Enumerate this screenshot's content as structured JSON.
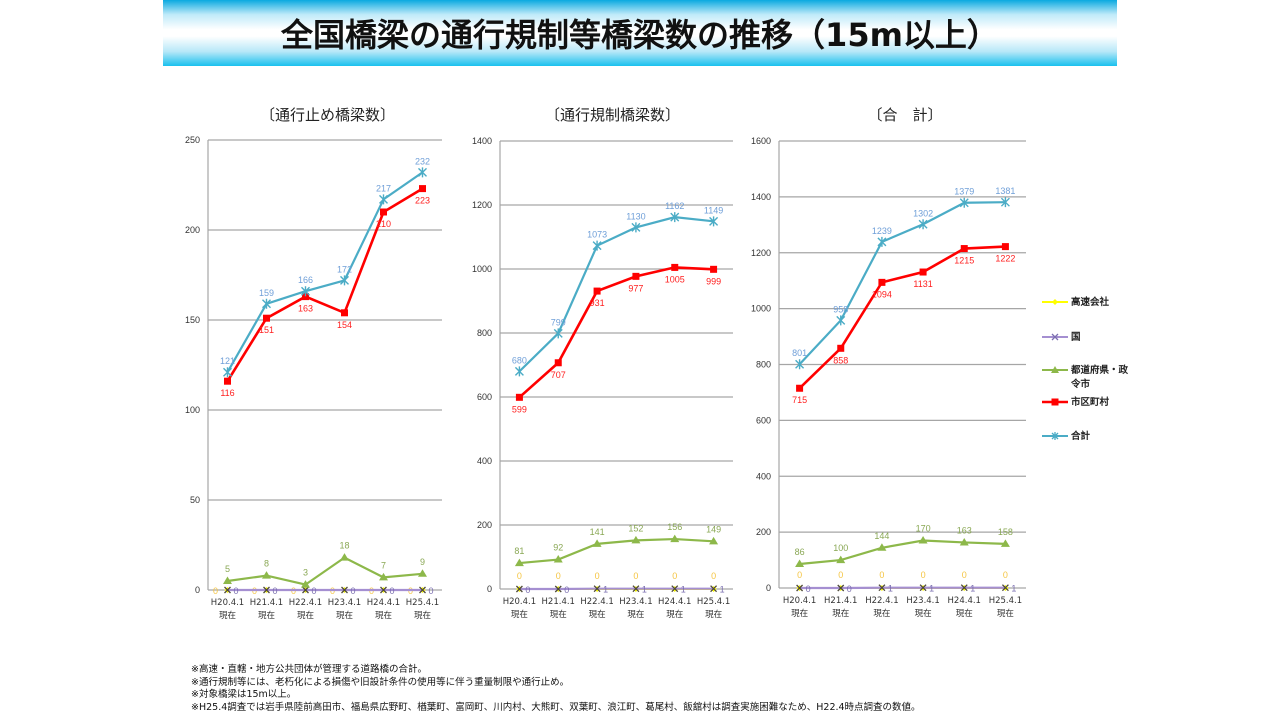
{
  "header": {
    "title": "全国橋梁の通行規制等橋梁数の推移（15m以上）"
  },
  "legend": [
    {
      "key": "expressway",
      "label": "高速会社",
      "color": "#ffff00",
      "marker": "diamond"
    },
    {
      "key": "national",
      "label": "国",
      "color": "#a58fd1",
      "marker": "x"
    },
    {
      "key": "prefecture",
      "label": "都道府県・政令市",
      "color": "#8db84a",
      "marker": "triangle"
    },
    {
      "key": "municipal",
      "label": "市区町村",
      "color": "#ff0000",
      "marker": "square"
    },
    {
      "key": "total",
      "label": "合計",
      "color": "#4bacc6",
      "marker": "star"
    }
  ],
  "label_colors": {
    "expressway": "#f5c542",
    "national": "#7b6fb0",
    "prefecture": "#8aa855",
    "municipal": "#ff2020",
    "total": "#6f9fd8"
  },
  "chart_data": [
    {
      "type": "line",
      "title": "〔通行止め橋梁数〕",
      "categories": [
        "H20.4.1\n現在",
        "H21.4.1\n現在",
        "H22.4.1\n現在",
        "H23.4.1\n現在",
        "H24.4.1\n現在",
        "H25.4.1\n現在"
      ],
      "ylim": [
        0,
        250
      ],
      "yticks": [
        0,
        50,
        100,
        150,
        200,
        250
      ],
      "grid": true,
      "series": [
        {
          "key": "expressway",
          "name": "高速会社",
          "values": [
            0,
            0,
            0,
            0,
            0,
            0
          ]
        },
        {
          "key": "national",
          "name": "国",
          "values": [
            0,
            0,
            0,
            0,
            0,
            0
          ]
        },
        {
          "key": "prefecture",
          "name": "都道府県・政令市",
          "values": [
            5,
            8,
            3,
            18,
            7,
            9
          ]
        },
        {
          "key": "municipal",
          "name": "市区町村",
          "values": [
            116,
            151,
            163,
            154,
            210,
            223
          ]
        },
        {
          "key": "total",
          "name": "合計",
          "values": [
            121,
            159,
            166,
            172,
            217,
            232
          ]
        }
      ]
    },
    {
      "type": "line",
      "title": "〔通行規制橋梁数〕",
      "categories": [
        "H20.4.1\n現在",
        "H21.4.1\n現在",
        "H22.4.1\n現在",
        "H23.4.1\n現在",
        "H24.4.1\n現在",
        "H25.4.1\n現在"
      ],
      "ylim": [
        0,
        1400
      ],
      "yticks": [
        0,
        200,
        400,
        600,
        800,
        1000,
        1200,
        1400
      ],
      "grid": true,
      "series": [
        {
          "key": "expressway",
          "name": "高速会社",
          "values": [
            0,
            0,
            0,
            0,
            0,
            0
          ]
        },
        {
          "key": "national",
          "name": "国",
          "values": [
            0,
            0,
            1,
            1,
            1,
            1
          ]
        },
        {
          "key": "prefecture",
          "name": "都道府県・政令市",
          "values": [
            81,
            92,
            141,
            152,
            156,
            149
          ]
        },
        {
          "key": "municipal",
          "name": "市区町村",
          "values": [
            599,
            707,
            931,
            977,
            1005,
            999
          ]
        },
        {
          "key": "total",
          "name": "合計",
          "values": [
            680,
            799,
            1073,
            1130,
            1162,
            1149
          ]
        }
      ]
    },
    {
      "type": "line",
      "title": "〔合　計〕",
      "categories": [
        "H20.4.1\n現在",
        "H21.4.1\n現在",
        "H22.4.1\n現在",
        "H23.4.1\n現在",
        "H24.4.1\n現在",
        "H25.4.1\n現在"
      ],
      "ylim": [
        0,
        1600
      ],
      "yticks": [
        0,
        200,
        400,
        600,
        800,
        1000,
        1200,
        1400,
        1600
      ],
      "grid": true,
      "legend_position": "right",
      "series": [
        {
          "key": "expressway",
          "name": "高速会社",
          "values": [
            0,
            0,
            0,
            0,
            0,
            0
          ]
        },
        {
          "key": "national",
          "name": "国",
          "values": [
            0,
            0,
            1,
            1,
            1,
            1
          ]
        },
        {
          "key": "prefecture",
          "name": "都道府県・政令市",
          "values": [
            86,
            100,
            144,
            170,
            163,
            158
          ]
        },
        {
          "key": "municipal",
          "name": "市区町村",
          "values": [
            715,
            858,
            1094,
            1131,
            1215,
            1222
          ]
        },
        {
          "key": "total",
          "name": "合計",
          "values": [
            801,
            958,
            1239,
            1302,
            1379,
            1381
          ]
        }
      ]
    }
  ],
  "notes": [
    "※高速・直轄・地方公共団体が管理する道路橋の合計。",
    "※通行規制等には、老朽化による損傷や旧設計条件の使用等に伴う重量制限や通行止め。",
    "※対象橋梁は15m以上。",
    "※H25.4調査では岩手県陸前高田市、福島県広野町、楢葉町、富岡町、川内村、大熊町、双葉町、浪江町、葛尾村、飯舘村は調査実施困難なため、H22.4時点調査の数値。"
  ]
}
